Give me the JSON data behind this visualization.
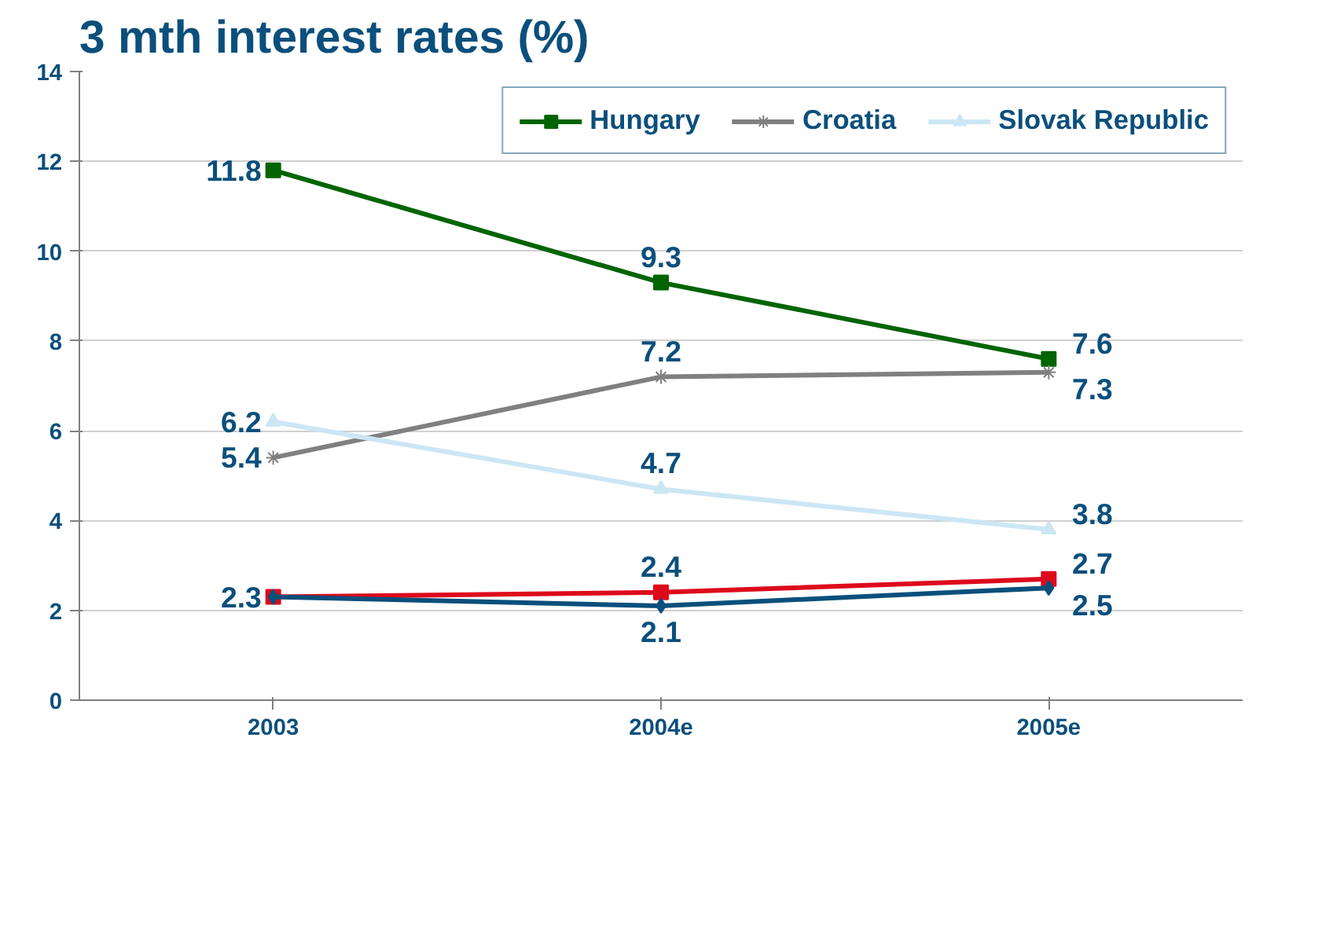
{
  "chart_data": {
    "type": "line",
    "title": "3 mth interest rates (%)",
    "categories": [
      "2003",
      "2004e",
      "2005e"
    ],
    "series": [
      {
        "name": "Hungary",
        "color": "#006400",
        "values": [
          11.8,
          9.3,
          7.6
        ],
        "marker": "square",
        "value_labels": [
          "11.8",
          "9.3",
          "7.6"
        ]
      },
      {
        "name": "Croatia",
        "color": "#808080",
        "values": [
          5.4,
          7.2,
          7.3
        ],
        "marker": "cross",
        "value_labels": [
          "5.4",
          "7.2",
          "7.3"
        ]
      },
      {
        "name": "Slovak Republic",
        "color": "#cce6f4",
        "values": [
          6.2,
          4.7,
          3.8
        ],
        "marker": "triangle",
        "value_labels": [
          "6.2",
          "4.7",
          "3.8"
        ]
      },
      {
        "color": "#dd0a1c",
        "values": [
          2.3,
          2.4,
          2.7
        ],
        "marker": "square",
        "value_labels": [
          "2.3",
          "2.4",
          "2.7"
        ]
      },
      {
        "color": "#0b4f7c",
        "values": [
          2.3,
          2.1,
          2.5
        ],
        "marker": "diamond",
        "value_labels": [
          null,
          "2.1",
          "2.5"
        ]
      }
    ],
    "ylim": [
      0,
      14
    ],
    "yticks": [
      0,
      2,
      4,
      6,
      8,
      10,
      12,
      14
    ],
    "grid": "y",
    "legend": "top right"
  }
}
